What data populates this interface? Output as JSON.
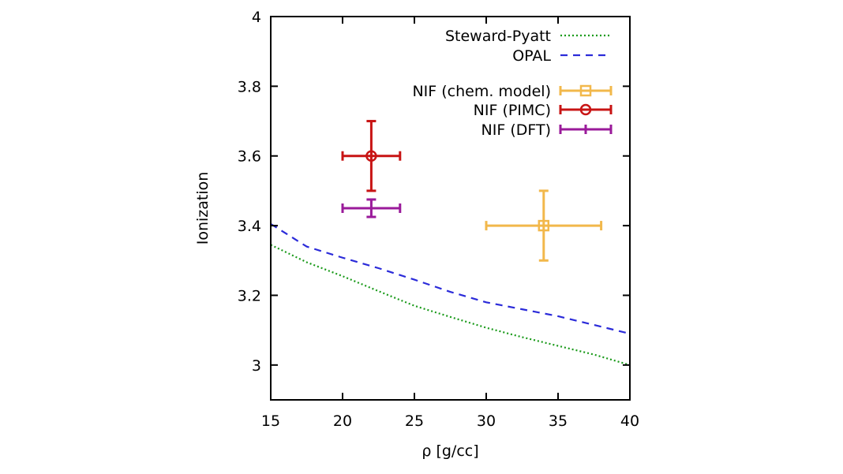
{
  "chart_data": {
    "type": "scatter",
    "xlabel": "ρ [g/cc]",
    "ylabel": "Ionization",
    "xlim": [
      15,
      40
    ],
    "ylim": [
      2.9,
      4.0
    ],
    "xticks": [
      15,
      20,
      25,
      30,
      35,
      40
    ],
    "yticks": [
      3,
      3.2,
      3.4,
      3.6,
      3.8,
      4
    ],
    "xtick_labels": [
      "15",
      "20",
      "25",
      "30",
      "35",
      "40"
    ],
    "ytick_labels": [
      "3",
      "3.2",
      "3.4",
      "3.6",
      "3.8",
      "4"
    ],
    "grid": false,
    "legend_position": "top-right",
    "lines": [
      {
        "name": "Steward-Pyatt",
        "style": "dotted",
        "color": "#1a9a1a",
        "x": [
          15,
          17.5,
          20,
          22.5,
          25,
          27.5,
          30,
          32.5,
          35,
          37.5,
          40
        ],
        "y": [
          3.345,
          3.295,
          3.255,
          3.212,
          3.17,
          3.138,
          3.107,
          3.08,
          3.055,
          3.03,
          3.0
        ]
      },
      {
        "name": "OPAL",
        "style": "dashed",
        "color": "#2b2bd9",
        "x": [
          15,
          17.5,
          20,
          22.5,
          25,
          27.5,
          30,
          32.5,
          35,
          37.5,
          40
        ],
        "y": [
          3.405,
          3.34,
          3.308,
          3.278,
          3.245,
          3.21,
          3.18,
          3.16,
          3.14,
          3.115,
          3.09
        ]
      }
    ],
    "points": [
      {
        "name": "NIF (chem. model)",
        "marker": "square",
        "color": "#f2b84b",
        "x": 34,
        "y": 3.4,
        "xerr": 4,
        "yerr": 0.1
      },
      {
        "name": "NIF (PIMC)",
        "marker": "circle",
        "color": "#c81414",
        "x": 22,
        "y": 3.6,
        "xerr": 2,
        "yerr": 0.1
      },
      {
        "name": "NIF (DFT)",
        "marker": "none",
        "color": "#9a1a9a",
        "x": 22,
        "y": 3.45,
        "xerr": 2,
        "yerr": 0.025
      }
    ]
  }
}
